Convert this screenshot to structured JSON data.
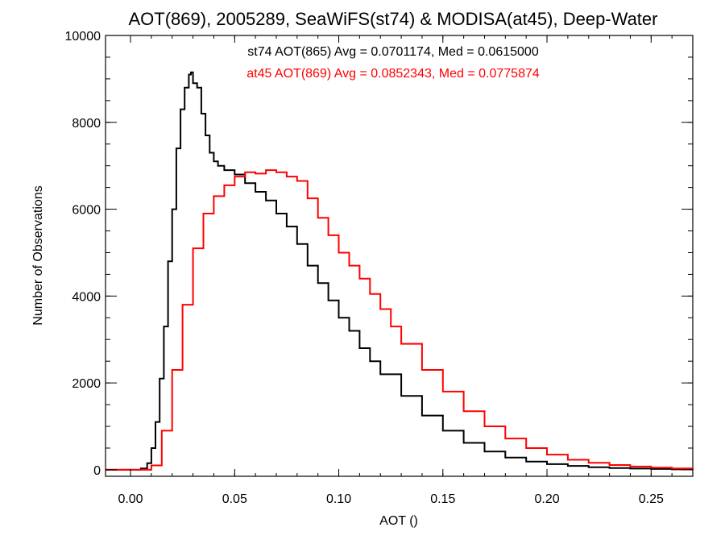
{
  "chart_data": {
    "type": "line",
    "title": "AOT(869), 2005289, SeaWiFS(st74) & MODISA(at45), Deep-Water",
    "xlabel": "AOT ()",
    "ylabel": "Number of Observations",
    "xlim": [
      -0.012,
      0.27
    ],
    "ylim": [
      -150,
      10000
    ],
    "x_ticks": [
      0.0,
      0.05,
      0.1,
      0.15,
      0.2,
      0.25
    ],
    "x_tick_labels": [
      "0.00",
      "0.05",
      "0.10",
      "0.15",
      "0.20",
      "0.25"
    ],
    "y_ticks": [
      0,
      2000,
      4000,
      6000,
      8000,
      10000
    ],
    "y_tick_labels": [
      "0",
      "2000",
      "4000",
      "6000",
      "8000",
      "10000"
    ],
    "annotations": [
      {
        "text": "st74 AOT(865) Avg = 0.0701174, Med = 0.0615000",
        "color": "#000000"
      },
      {
        "text": "at45 AOT(869) Avg = 0.0852343, Med = 0.0775874",
        "color": "#ff0000"
      }
    ],
    "series": [
      {
        "color": "#000000",
        "x": [
          -0.012,
          0.0,
          0.005,
          0.008,
          0.01,
          0.012,
          0.014,
          0.016,
          0.018,
          0.02,
          0.022,
          0.024,
          0.026,
          0.028,
          0.029,
          0.03,
          0.032,
          0.034,
          0.036,
          0.038,
          0.04,
          0.042,
          0.045,
          0.05,
          0.055,
          0.06,
          0.065,
          0.07,
          0.075,
          0.08,
          0.085,
          0.09,
          0.095,
          0.1,
          0.105,
          0.11,
          0.115,
          0.12,
          0.13,
          0.14,
          0.15,
          0.16,
          0.17,
          0.18,
          0.19,
          0.2,
          0.21,
          0.22,
          0.23,
          0.24,
          0.25,
          0.26,
          0.27
        ],
        "y": [
          0,
          0,
          30,
          150,
          500,
          1100,
          2100,
          3300,
          4800,
          6000,
          7400,
          8300,
          8800,
          9100,
          9150,
          8900,
          8800,
          8200,
          7700,
          7300,
          7100,
          7000,
          6900,
          6800,
          6600,
          6400,
          6200,
          5900,
          5600,
          5200,
          4700,
          4300,
          3900,
          3500,
          3200,
          2800,
          2500,
          2200,
          1700,
          1250,
          900,
          620,
          420,
          280,
          190,
          130,
          90,
          60,
          40,
          28,
          18,
          10,
          5
        ]
      },
      {
        "color": "#ff0000",
        "x": [
          -0.012,
          0.0,
          0.005,
          0.01,
          0.015,
          0.02,
          0.025,
          0.03,
          0.035,
          0.04,
          0.045,
          0.05,
          0.055,
          0.06,
          0.065,
          0.07,
          0.075,
          0.08,
          0.085,
          0.09,
          0.095,
          0.1,
          0.105,
          0.11,
          0.115,
          0.12,
          0.125,
          0.13,
          0.14,
          0.15,
          0.16,
          0.17,
          0.18,
          0.19,
          0.2,
          0.21,
          0.22,
          0.23,
          0.24,
          0.25,
          0.26,
          0.27
        ],
        "y": [
          0,
          0,
          0,
          100,
          900,
          2300,
          3800,
          5100,
          5900,
          6300,
          6550,
          6750,
          6850,
          6820,
          6900,
          6850,
          6750,
          6650,
          6250,
          5800,
          5400,
          5000,
          4700,
          4400,
          4050,
          3700,
          3300,
          2900,
          2300,
          1800,
          1350,
          1000,
          720,
          500,
          350,
          230,
          160,
          110,
          75,
          50,
          32,
          20
        ]
      }
    ]
  }
}
